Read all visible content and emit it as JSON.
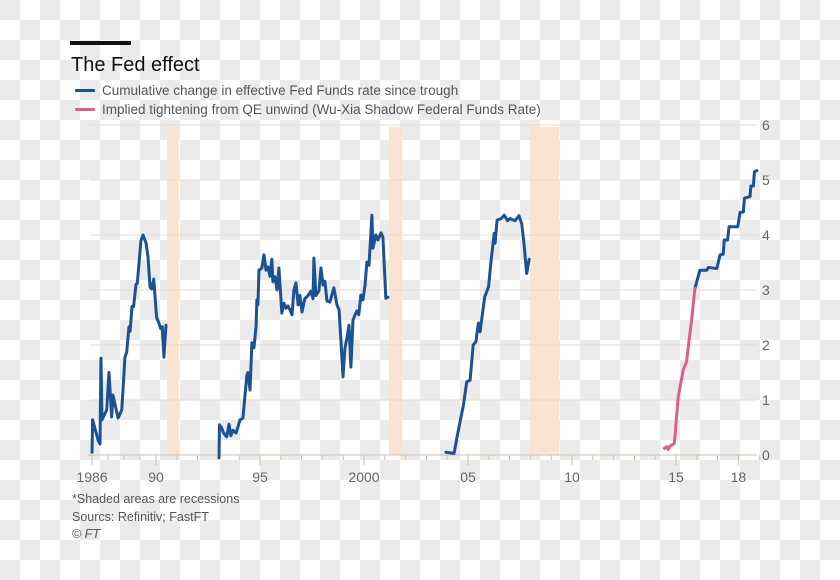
{
  "title": "The Fed effect",
  "legend": [
    {
      "label": "Cumulative change in effective Fed Funds rate since trough",
      "color": "#1a5294"
    },
    {
      "label": "Implied tightening from QE unwind (Wu-Xia Shadow Federal Funds Rate)",
      "color": "#d9608c"
    }
  ],
  "footer": {
    "note": "*Shaded areas are recessions",
    "sources": "Sourcs: Refinitiv; FastFT",
    "copyright": "© FT"
  },
  "chart_data": {
    "type": "line",
    "title": "The Fed effect",
    "xlim": [
      1986,
      2019
    ],
    "ylim": [
      0,
      6
    ],
    "grid": true,
    "y_axis_position": "right",
    "legend_placement": "top-left",
    "x_ticks": [
      {
        "value": 1986,
        "label": "1986"
      },
      {
        "value": 1990,
        "label": "90"
      },
      {
        "value": 1995,
        "label": "95"
      },
      {
        "value": 2000,
        "label": "2000"
      },
      {
        "value": 2005,
        "label": "05"
      },
      {
        "value": 2010,
        "label": "10"
      },
      {
        "value": 2015,
        "label": "15"
      },
      {
        "value": 2018,
        "label": "18"
      }
    ],
    "y_ticks": [
      0,
      1,
      2,
      3,
      4,
      5,
      6
    ],
    "recessions": [
      [
        1990.53,
        1991.1
      ],
      [
        2001.2,
        2001.83
      ],
      [
        2007.98,
        2009.38
      ]
    ],
    "recession_color": "#fbe3d2",
    "series": [
      {
        "name": "Cumulative change in effective Fed Funds rate since trough",
        "color": "#1a5294",
        "segments": [
          [
            [
              1986.0,
              0.05
            ],
            [
              1986.04,
              0.64
            ],
            [
              1986.38,
              0.27
            ],
            [
              1986.5,
              0.2
            ],
            [
              1986.56,
              1.76
            ],
            [
              1986.63,
              0.64
            ],
            [
              1986.92,
              0.82
            ],
            [
              1987.06,
              1.5
            ],
            [
              1987.23,
              0.69
            ],
            [
              1987.31,
              1.09
            ],
            [
              1987.63,
              0.67
            ],
            [
              1987.86,
              0.82
            ],
            [
              1988.06,
              1.78
            ],
            [
              1988.17,
              1.87
            ],
            [
              1988.31,
              2.33
            ],
            [
              1988.38,
              2.25
            ],
            [
              1988.5,
              2.7
            ],
            [
              1988.6,
              2.7
            ],
            [
              1988.75,
              3.1
            ],
            [
              1988.83,
              3.12
            ],
            [
              1989.06,
              3.9
            ],
            [
              1989.19,
              4.0
            ],
            [
              1989.38,
              3.85
            ],
            [
              1989.5,
              3.6
            ],
            [
              1989.63,
              3.05
            ],
            [
              1989.73,
              3.02
            ],
            [
              1989.86,
              3.2
            ],
            [
              1990.0,
              2.64
            ],
            [
              1990.03,
              2.5
            ],
            [
              1990.14,
              2.4
            ],
            [
              1990.22,
              2.3
            ],
            [
              1990.3,
              2.33
            ],
            [
              1990.38,
              1.78
            ],
            [
              1990.48,
              2.36
            ]
          ],
          [
            [
              1993.03,
              -0.05
            ],
            [
              1993.05,
              0.55
            ],
            [
              1993.15,
              0.5
            ],
            [
              1993.25,
              0.4
            ],
            [
              1993.4,
              0.33
            ],
            [
              1993.51,
              0.56
            ],
            [
              1993.6,
              0.35
            ],
            [
              1993.7,
              0.45
            ],
            [
              1993.85,
              0.4
            ],
            [
              1994.04,
              0.64
            ],
            [
              1994.18,
              0.67
            ],
            [
              1994.28,
              1.09
            ],
            [
              1994.37,
              1.45
            ],
            [
              1994.42,
              1.5
            ],
            [
              1994.52,
              1.18
            ],
            [
              1994.61,
              2.04
            ],
            [
              1994.71,
              1.95
            ],
            [
              1994.81,
              2.33
            ],
            [
              1994.85,
              2.82
            ],
            [
              1994.9,
              2.73
            ],
            [
              1994.95,
              3.36
            ],
            [
              1995.09,
              3.4
            ],
            [
              1995.19,
              3.64
            ],
            [
              1995.29,
              3.36
            ],
            [
              1995.38,
              3.42
            ],
            [
              1995.48,
              3.25
            ],
            [
              1995.57,
              3.56
            ],
            [
              1995.62,
              3.15
            ],
            [
              1995.72,
              3.24
            ],
            [
              1995.82,
              3.0
            ],
            [
              1995.91,
              3.4
            ],
            [
              1996.05,
              2.58
            ],
            [
              1996.15,
              2.76
            ],
            [
              1996.25,
              2.67
            ],
            [
              1996.34,
              2.71
            ],
            [
              1996.44,
              2.64
            ],
            [
              1996.54,
              2.55
            ],
            [
              1996.63,
              3.0
            ],
            [
              1996.73,
              3.13
            ],
            [
              1996.83,
              2.73
            ],
            [
              1996.92,
              2.9
            ],
            [
              1997.02,
              2.6
            ],
            [
              1997.15,
              2.84
            ],
            [
              1997.31,
              2.9
            ],
            [
              1997.45,
              2.98
            ],
            [
              1997.55,
              2.84
            ],
            [
              1997.59,
              3.58
            ],
            [
              1997.69,
              2.9
            ],
            [
              1997.83,
              2.98
            ],
            [
              1997.93,
              3.4
            ],
            [
              1998.03,
              3.09
            ],
            [
              1998.12,
              3.16
            ],
            [
              1998.22,
              2.8
            ],
            [
              1998.36,
              2.78
            ],
            [
              1998.55,
              3.04
            ],
            [
              1998.7,
              2.73
            ],
            [
              1998.8,
              2.64
            ],
            [
              1998.89,
              2.09
            ],
            [
              1998.99,
              1.42
            ],
            [
              1999.08,
              1.93
            ],
            [
              1999.18,
              2.13
            ],
            [
              1999.28,
              2.36
            ],
            [
              1999.37,
              1.6
            ],
            [
              1999.47,
              2.45
            ],
            [
              1999.57,
              2.55
            ],
            [
              1999.66,
              2.62
            ],
            [
              1999.75,
              2.55
            ],
            [
              1999.85,
              2.91
            ],
            [
              1999.95,
              2.82
            ],
            [
              2000.05,
              3.09
            ],
            [
              2000.14,
              3.51
            ],
            [
              2000.24,
              3.45
            ],
            [
              2000.38,
              4.36
            ],
            [
              2000.43,
              3.76
            ],
            [
              2000.57,
              4.0
            ],
            [
              2000.67,
              3.91
            ],
            [
              2000.82,
              4.04
            ],
            [
              2000.91,
              3.96
            ],
            [
              2001.05,
              2.85
            ],
            [
              2001.15,
              2.87
            ]
          ],
          [
            [
              2003.94,
              0.05
            ],
            [
              2004.33,
              0.03
            ],
            [
              2004.46,
              0.3
            ],
            [
              2004.7,
              0.76
            ],
            [
              2004.77,
              0.88
            ],
            [
              2004.94,
              1.33
            ],
            [
              2005.1,
              1.36
            ],
            [
              2005.25,
              2.0
            ],
            [
              2005.38,
              2.06
            ],
            [
              2005.5,
              2.4
            ],
            [
              2005.58,
              2.24
            ],
            [
              2005.8,
              2.87
            ],
            [
              2005.99,
              3.06
            ],
            [
              2006.1,
              3.5
            ],
            [
              2006.26,
              4.03
            ],
            [
              2006.3,
              3.85
            ],
            [
              2006.4,
              4.27
            ],
            [
              2006.6,
              4.3
            ],
            [
              2006.74,
              4.36
            ],
            [
              2006.9,
              4.26
            ],
            [
              2007.02,
              4.3
            ],
            [
              2007.26,
              4.26
            ],
            [
              2007.45,
              4.35
            ],
            [
              2007.58,
              4.21
            ],
            [
              2007.69,
              3.85
            ],
            [
              2007.82,
              3.3
            ],
            [
              2007.94,
              3.56
            ]
          ],
          [
            [
              2015.91,
              3.03
            ],
            [
              2016.15,
              3.36
            ],
            [
              2016.48,
              3.36
            ],
            [
              2016.56,
              3.41
            ],
            [
              2016.96,
              3.39
            ],
            [
              2017.12,
              3.64
            ],
            [
              2017.27,
              3.65
            ],
            [
              2017.32,
              3.91
            ],
            [
              2017.48,
              3.91
            ],
            [
              2017.55,
              4.15
            ],
            [
              2017.97,
              4.15
            ],
            [
              2018.08,
              4.41
            ],
            [
              2018.24,
              4.42
            ],
            [
              2018.29,
              4.67
            ],
            [
              2018.56,
              4.7
            ],
            [
              2018.6,
              4.89
            ],
            [
              2018.72,
              4.89
            ],
            [
              2018.77,
              5.15
            ],
            [
              2018.89,
              5.17
            ]
          ]
        ]
      },
      {
        "name": "Implied tightening from QE unwind (Wu-Xia Shadow Federal Funds Rate)",
        "color": "#d9608c",
        "segments": [
          [
            [
              2014.44,
              0.12
            ],
            [
              2014.55,
              0.15
            ],
            [
              2014.63,
              0.1
            ],
            [
              2014.71,
              0.16
            ],
            [
              2014.92,
              0.21
            ],
            [
              2014.99,
              0.52
            ],
            [
              2015.11,
              1.06
            ],
            [
              2015.35,
              1.55
            ],
            [
              2015.51,
              1.7
            ],
            [
              2015.63,
              2.09
            ],
            [
              2015.75,
              2.45
            ],
            [
              2015.91,
              3.03
            ]
          ]
        ]
      }
    ]
  }
}
